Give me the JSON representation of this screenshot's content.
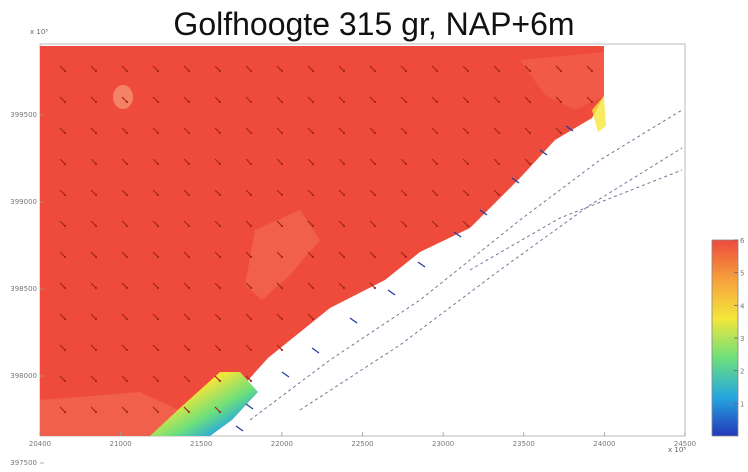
{
  "chart_data": {
    "type": "heatmap",
    "title": "Golfhoogte 315 gr, NAP+6m",
    "x_exponent": "x 10⁵",
    "y_exponent": "x 10⁵",
    "x_ticks": [
      "20400",
      "21000",
      "21500",
      "22000",
      "22500",
      "23000",
      "23500",
      "24000",
      "24500"
    ],
    "y_ticks": [
      "399500",
      "399000",
      "398500",
      "398000",
      "397500"
    ],
    "colorbar_ticks": [
      "6",
      "5",
      "4",
      "3",
      "2",
      "1"
    ],
    "colorbar_range": [
      0,
      6
    ],
    "colormap": [
      "#2338b8",
      "#25a7e0",
      "#6ee07a",
      "#f4e63a",
      "#f6a03c",
      "#ec4a3c"
    ],
    "field": {
      "sea_value": 5.6,
      "near_shore_value": 5.0,
      "dry_land": "white",
      "description_values": [
        6,
        5,
        4,
        3,
        2,
        1
      ]
    },
    "vector_direction_deg": 315,
    "colors": {
      "sea": "#ef4b3c",
      "sea_light": "#f26a50",
      "land": "#ffffff",
      "arrow_sea": "#a12618",
      "arrow_shore": "#283c9c",
      "shore_line": "#707a9a"
    }
  }
}
